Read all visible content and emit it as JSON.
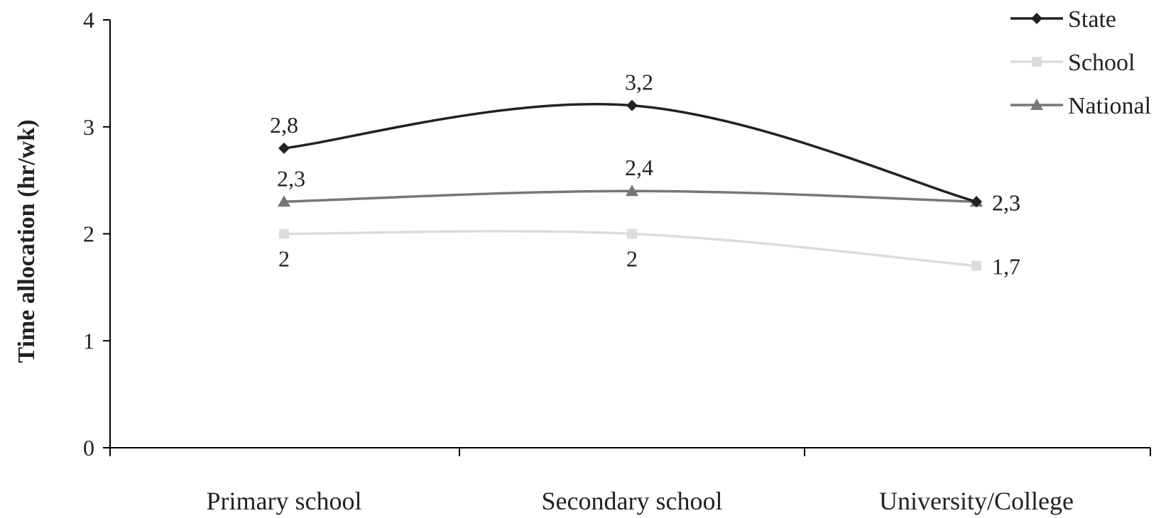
{
  "chart_data": {
    "type": "line",
    "categories": [
      "Primary school",
      "Secondary school",
      "University/College"
    ],
    "ylabel": "Time allocation (hr/wk)",
    "ylim": [
      0,
      4
    ],
    "yticks": [
      0,
      1,
      2,
      3,
      4
    ],
    "grid": false,
    "legend_position": "top-right",
    "series": [
      {
        "name": "State",
        "values": [
          2.8,
          3.2,
          2.3
        ],
        "labels": [
          "2,8",
          "3,2",
          "2,3"
        ],
        "color": "#222222",
        "marker": "diamond"
      },
      {
        "name": "School",
        "values": [
          2.0,
          2.0,
          1.7
        ],
        "labels": [
          "2",
          "2",
          "1,7"
        ],
        "color": "#dcdcdc",
        "marker": "square"
      },
      {
        "name": "National",
        "values": [
          2.3,
          2.4,
          2.3
        ],
        "labels": [
          "2,3",
          "2,4",
          "2,3"
        ],
        "color": "#777777",
        "marker": "triangle"
      }
    ]
  }
}
